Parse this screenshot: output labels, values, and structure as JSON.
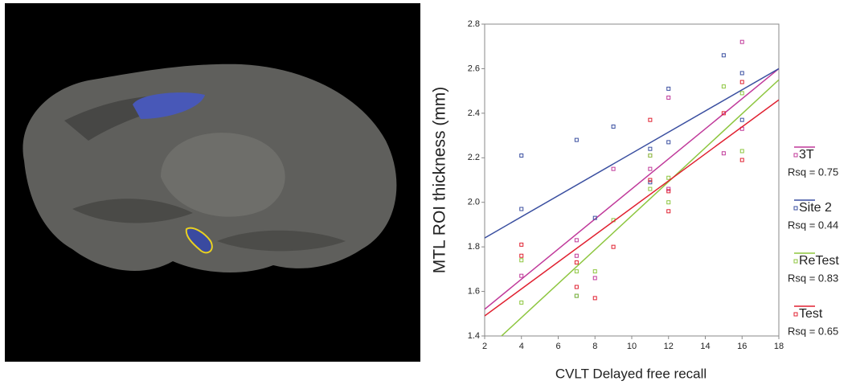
{
  "chart_data": {
    "type": "scatter",
    "x_label": "CVLT Delayed free recall",
    "y_label": "MTL ROI thickness (mm)",
    "xlim": [
      2,
      18
    ],
    "xticks": [
      2,
      4,
      6,
      8,
      10,
      12,
      14,
      16,
      18
    ],
    "ylim": [
      1.4,
      2.8
    ],
    "yticks": [
      1.4,
      1.6,
      1.8,
      {
        "value": 2,
        "label": "2.0"
      },
      2.2,
      2.4,
      2.6,
      2.8
    ],
    "series": [
      {
        "name": "3T",
        "color": "#c0399a",
        "fit_label": "Rsq = 0.75",
        "x": [
          4,
          7,
          7,
          8,
          9,
          11,
          11,
          12,
          12,
          15,
          16,
          16
        ],
        "values": [
          1.67,
          1.83,
          1.76,
          1.66,
          2.15,
          2.15,
          2.21,
          2.47,
          2.06,
          2.22,
          2.72,
          2.33
        ],
        "fit_x": [
          2,
          18
        ],
        "fit_y": [
          1.52,
          2.6
        ]
      },
      {
        "name": "Site 2",
        "color": "#3a4fa0",
        "fit_label": "Rsq = 0.44",
        "x": [
          4,
          4,
          7,
          7,
          8,
          9,
          11,
          11,
          12,
          12,
          15,
          16,
          16
        ],
        "values": [
          2.21,
          1.97,
          2.28,
          1.58,
          1.93,
          2.34,
          2.24,
          2.09,
          2.51,
          2.27,
          2.66,
          2.58,
          2.37
        ],
        "fit_x": [
          2,
          18
        ],
        "fit_y": [
          1.84,
          2.6
        ]
      },
      {
        "name": "ReTest",
        "color": "#8dc63f",
        "fit_label": "Rsq = 0.83",
        "x": [
          4,
          4,
          7,
          7,
          8,
          9,
          11,
          11,
          12,
          12,
          15,
          16,
          16
        ],
        "values": [
          1.74,
          1.55,
          1.69,
          1.58,
          1.69,
          1.92,
          2.21,
          2.06,
          2.11,
          2.0,
          2.52,
          2.49,
          2.23
        ],
        "fit_x": [
          2,
          18
        ],
        "fit_y": [
          1.33,
          2.55
        ]
      },
      {
        "name": "Test",
        "color": "#e02030",
        "fit_label": "Rsq = 0.65",
        "x": [
          4,
          4,
          7,
          7,
          8,
          9,
          11,
          11,
          12,
          12,
          15,
          16,
          16
        ],
        "values": [
          1.81,
          1.76,
          1.73,
          1.62,
          1.57,
          1.8,
          2.37,
          2.1,
          2.05,
          1.96,
          2.4,
          2.54,
          2.19
        ],
        "fit_x": [
          2,
          18
        ],
        "fit_y": [
          1.49,
          2.46
        ]
      }
    ]
  }
}
